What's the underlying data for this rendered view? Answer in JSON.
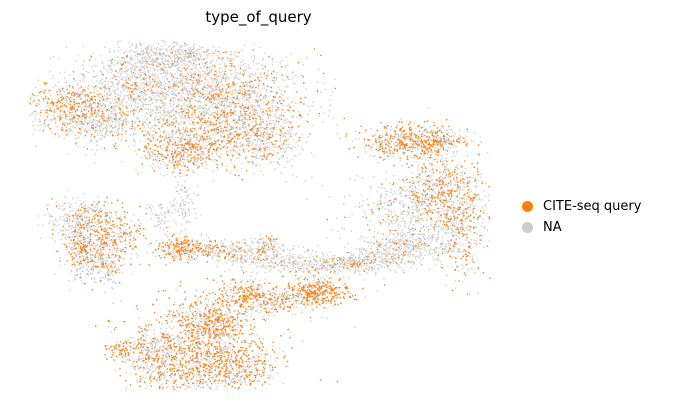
{
  "chart_data": {
    "type": "scatter",
    "title": "type_of_query",
    "xlabel": "",
    "ylabel": "",
    "axes_visible": false,
    "grid": false,
    "legend_placement": "right",
    "series": [
      {
        "name": "NA",
        "color": "#cccccc"
      },
      {
        "name": "CITE-seq query",
        "color": "#ff7f0e"
      }
    ],
    "legend_order": [
      "CITE-seq query",
      "NA"
    ]
  }
}
